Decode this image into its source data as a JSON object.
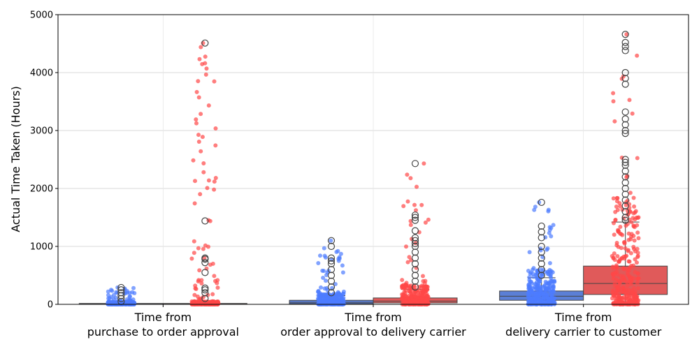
{
  "chart_data": {
    "type": "box",
    "title": "",
    "xlabel": "",
    "ylabel": "Actual Time Taken (Hours)",
    "ylim": [
      0,
      5000
    ],
    "yticks": [
      0,
      1000,
      2000,
      3000,
      4000,
      5000
    ],
    "grid": true,
    "legend": "none",
    "categories": [
      [
        "Time from",
        "purchase to order approval"
      ],
      [
        "Time from",
        "order approval to delivery carrier"
      ],
      [
        "Time from",
        "delivery carrier to customer"
      ]
    ],
    "series": [
      {
        "color": "#4d7cff",
        "box_color": "#5b7fd6",
        "boxes": [
          {
            "q1": 2,
            "median": 5,
            "q3": 15,
            "whisker_low": 0,
            "whisker_high": 35,
            "max_strip": 290,
            "outliers": [
              50,
              100,
              150,
              200,
              250,
              290
            ]
          },
          {
            "q1": 10,
            "median": 35,
            "q3": 70,
            "whisker_low": 0,
            "whisker_high": 150,
            "max_strip": 1100,
            "outliers": [
              200,
              300,
              400,
              500,
              600,
              700,
              750,
              800,
              1000,
              1100
            ]
          },
          {
            "q1": 70,
            "median": 140,
            "q3": 230,
            "whisker_low": 0,
            "whisker_high": 460,
            "max_strip": 1760,
            "outliers": [
              500,
              600,
              700,
              800,
              900,
              1000,
              1150,
              1250,
              1350,
              1760
            ]
          }
        ]
      },
      {
        "color": "#ff4747",
        "box_color": "#e05a5a",
        "boxes": [
          {
            "q1": 2,
            "median": 5,
            "q3": 15,
            "whisker_low": 0,
            "whisker_high": 40,
            "max_strip": 4510,
            "outliers": [
              100,
              200,
              250,
              280,
              550,
              720,
              780,
              800,
              1440,
              4510
            ]
          },
          {
            "q1": 25,
            "median": 55,
            "q3": 110,
            "whisker_low": 0,
            "whisker_high": 260,
            "max_strip": 2430,
            "outliers": [
              300,
              400,
              500,
              600,
              700,
              800,
              900,
              1000,
              1050,
              1100,
              1150,
              1270,
              1450,
              1500,
              1540,
              2430
            ]
          },
          {
            "q1": 170,
            "median": 360,
            "q3": 660,
            "whisker_low": 0,
            "whisker_high": 1420,
            "max_strip": 4660,
            "outliers": [
              1450,
              1500,
              1600,
              1700,
              1800,
              1900,
              2000,
              2100,
              2200,
              2300,
              2400,
              2450,
              2500,
              2950,
              3000,
              3100,
              3200,
              3320,
              3800,
              3900,
              4000,
              4380,
              4450,
              4520,
              4660
            ]
          }
        ]
      }
    ]
  }
}
